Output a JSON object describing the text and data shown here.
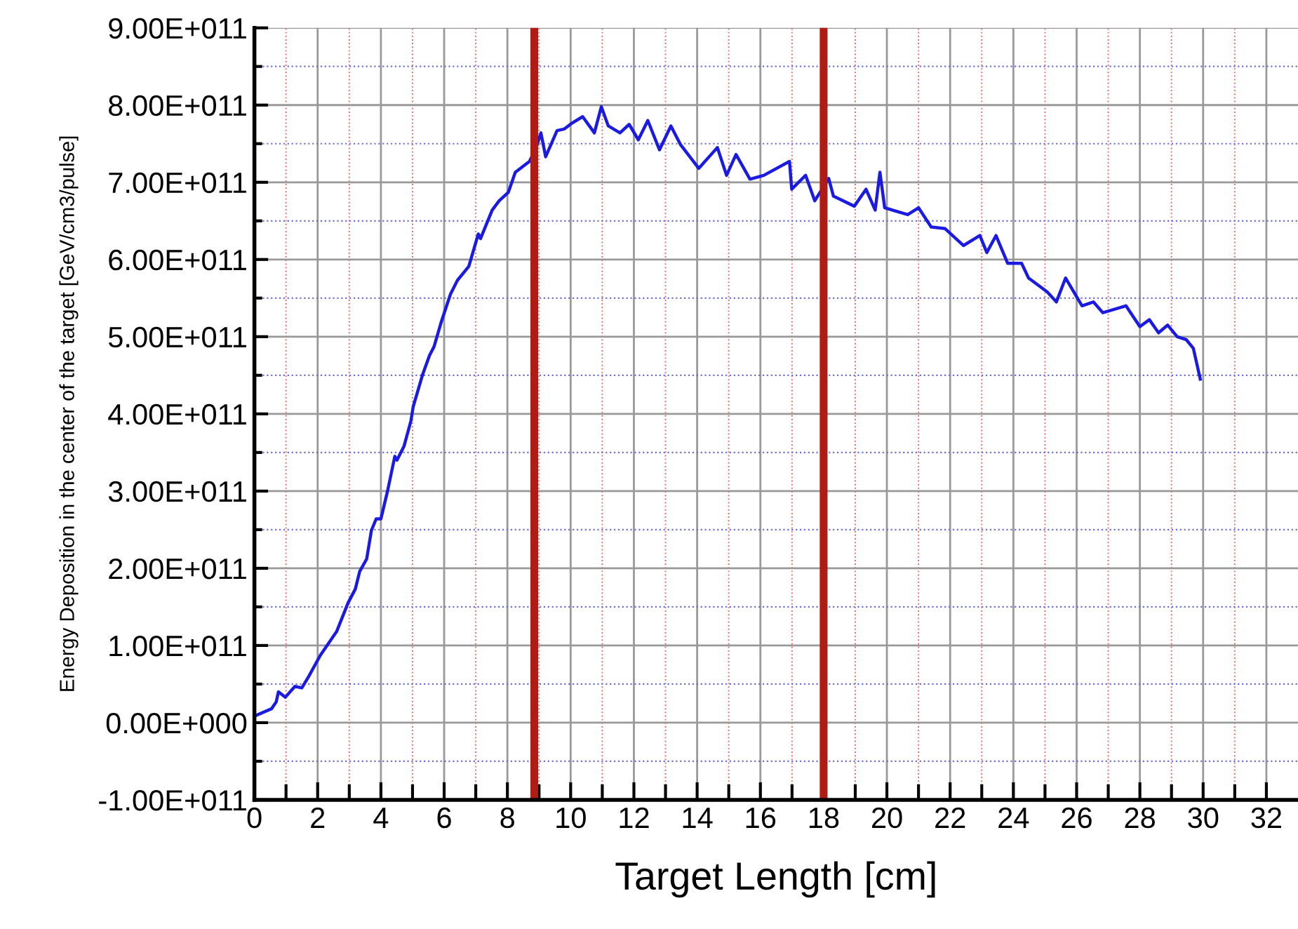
{
  "chart_data": {
    "type": "line",
    "xlabel": "Target Length [cm]",
    "ylabel": "Energy Deposition in the center of the target [GeV/cm3/pulse]",
    "series": [
      {
        "color": "#1a1ae0",
        "x": [
          0.03,
          0.54,
          0.69,
          0.76,
          0.98,
          1.28,
          1.5,
          1.72,
          2.08,
          2.6,
          2.96,
          3.19,
          3.33,
          3.55,
          3.7,
          3.85,
          4.0,
          4.21,
          4.44,
          4.51,
          4.73,
          4.95,
          5.02,
          5.32,
          5.54,
          5.68,
          5.9,
          6.2,
          6.42,
          6.78,
          7.08,
          7.15,
          7.52,
          7.74,
          8.03,
          8.25,
          8.7,
          8.91,
          9.06,
          9.21,
          9.57,
          9.8,
          10.02,
          10.38,
          10.75,
          10.97,
          11.19,
          11.56,
          11.85,
          12.14,
          12.44,
          12.81,
          13.17,
          13.47,
          14.05,
          14.64,
          14.93,
          15.23,
          15.67,
          16.11,
          16.92,
          16.99,
          17.43,
          17.72,
          18.16,
          18.31,
          18.97,
          19.34,
          19.63,
          19.78,
          19.93,
          20.66,
          21.0,
          21.4,
          21.84,
          22.42,
          22.94,
          23.16,
          23.45,
          23.82,
          24.26,
          24.48,
          25.07,
          25.36,
          25.65,
          26.17,
          26.53,
          26.83,
          27.56,
          28.0,
          28.3,
          28.59,
          28.88,
          29.18,
          29.47,
          29.69,
          29.91
        ],
        "values": [
          9000000000.0,
          18000000000.0,
          27000000000.0,
          40000000000.0,
          33000000000.0,
          47000000000.0,
          45000000000.0,
          60000000000.0,
          87000000000.0,
          118000000000.0,
          155000000000.0,
          173000000000.0,
          196000000000.0,
          212000000000.0,
          249000000000.0,
          264000000000.0,
          264000000000.0,
          300000000000.0,
          345000000000.0,
          340000000000.0,
          358000000000.0,
          391000000000.0,
          409000000000.0,
          451000000000.0,
          476000000000.0,
          487000000000.0,
          518000000000.0,
          555000000000.0,
          573000000000.0,
          591000000000.0,
          633000000000.0,
          627000000000.0,
          664000000000.0,
          676000000000.0,
          687000000000.0,
          713000000000.0,
          727000000000.0,
          745000000000.0,
          764000000000.0,
          733000000000.0,
          767000000000.0,
          769000000000.0,
          776000000000.0,
          785000000000.0,
          764000000000.0,
          798000000000.0,
          773000000000.0,
          764000000000.0,
          775000000000.0,
          755000000000.0,
          780000000000.0,
          742000000000.0,
          773000000000.0,
          749000000000.0,
          718000000000.0,
          745000000000.0,
          709000000000.0,
          736000000000.0,
          704000000000.0,
          709000000000.0,
          727000000000.0,
          691000000000.0,
          709000000000.0,
          676000000000.0,
          705000000000.0,
          682000000000.0,
          669000000000.0,
          691000000000.0,
          664000000000.0,
          713000000000.0,
          667000000000.0,
          658000000000.0,
          667000000000.0,
          642000000000.0,
          640000000000.0,
          618000000000.0,
          631000000000.0,
          609000000000.0,
          631000000000.0,
          595000000000.0,
          595000000000.0,
          576000000000.0,
          558000000000.0,
          545000000000.0,
          576000000000.0,
          540000000000.0,
          545000000000.0,
          531000000000.0,
          540000000000.0,
          513000000000.0,
          522000000000.0,
          505000000000.0,
          515000000000.0,
          500000000000.0,
          496000000000.0,
          485000000000.0,
          445000000000.0
        ]
      }
    ],
    "xlim": [
      0,
      33
    ],
    "xticks": [
      0,
      {
        "value": 1,
        "label": null
      },
      2,
      {
        "value": 3,
        "label": null
      },
      4,
      {
        "value": 5,
        "label": null
      },
      6,
      {
        "value": 7,
        "label": null
      },
      8,
      {
        "value": 9,
        "label": null
      },
      10,
      {
        "value": 11,
        "label": null
      },
      12,
      {
        "value": 13,
        "label": null
      },
      14,
      {
        "value": 15,
        "label": null
      },
      16,
      {
        "value": 17,
        "label": null
      },
      18,
      {
        "value": 19,
        "label": null
      },
      20,
      {
        "value": 21,
        "label": null
      },
      22,
      {
        "value": 23,
        "label": null
      },
      24,
      {
        "value": 25,
        "label": null
      },
      26,
      {
        "value": 27,
        "label": null
      },
      28,
      {
        "value": 29,
        "label": null
      },
      30,
      {
        "value": 31,
        "label": null
      },
      32
    ],
    "ylim": [
      -100000000000.0,
      900000000000.0
    ],
    "yticks": [
      {
        "value": -100000000000.0,
        "label": "-1.00E+011"
      },
      {
        "value": -50000000000.0,
        "label": null
      },
      {
        "value": 0,
        "label": "0.00E+000"
      },
      {
        "value": 50000000000.0,
        "label": null
      },
      {
        "value": 100000000000.0,
        "label": "1.00E+011"
      },
      {
        "value": 150000000000.0,
        "label": null
      },
      {
        "value": 200000000000.0,
        "label": "2.00E+011"
      },
      {
        "value": 250000000000.0,
        "label": null
      },
      {
        "value": 300000000000.0,
        "label": "3.00E+011"
      },
      {
        "value": 350000000000.0,
        "label": null
      },
      {
        "value": 400000000000.0,
        "label": "4.00E+011"
      },
      {
        "value": 450000000000.0,
        "label": null
      },
      {
        "value": 500000000000.0,
        "label": "5.00E+011"
      },
      {
        "value": 550000000000.0,
        "label": null
      },
      {
        "value": 600000000000.0,
        "label": "6.00E+011"
      },
      {
        "value": 650000000000.0,
        "label": null
      },
      {
        "value": 700000000000.0,
        "label": "7.00E+011"
      },
      {
        "value": 750000000000.0,
        "label": null
      },
      {
        "value": 800000000000.0,
        "label": "8.00E+011"
      },
      {
        "value": 850000000000.0,
        "label": null
      },
      {
        "value": 900000000000.0,
        "label": "9.00E+011"
      }
    ],
    "ref_lines": [
      {
        "axis": "x",
        "value": 8.85,
        "label": null,
        "color": "#b01c14"
      },
      {
        "axis": "x",
        "value": 18.0,
        "label": null,
        "color": "#b01c14"
      }
    ],
    "grid": true,
    "legend": false,
    "marker": "none",
    "line_style": "solid"
  }
}
